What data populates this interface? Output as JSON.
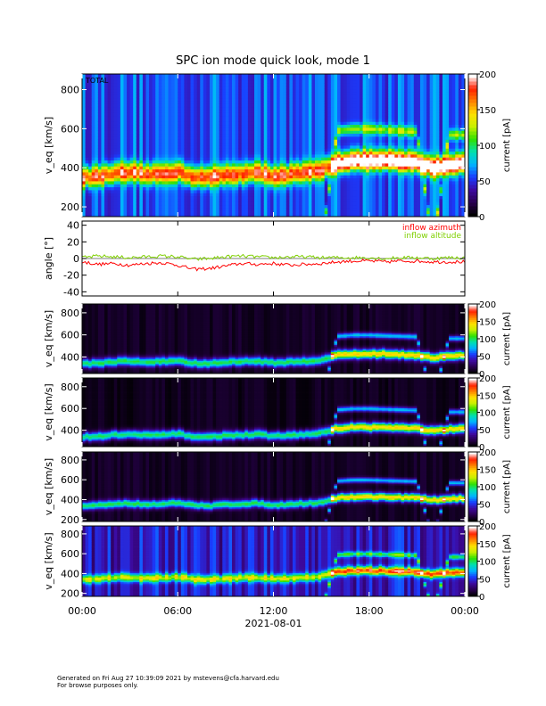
{
  "title": "SPC ion mode quick look, mode 1",
  "footer": {
    "line1": "Generated on Fri Aug 27 10:39:09 2021 by mstevens@cfa.harvard.edu",
    "line2": "For browse purposes only."
  },
  "colors": {
    "azimuth": "#ff0000",
    "altitude": "#7fd000",
    "colormap": [
      "#000000",
      "#2a0050",
      "#3d0aa0",
      "#1a3cff",
      "#00b4ff",
      "#00e0b0",
      "#30e000",
      "#c8f000",
      "#ffe000",
      "#ff8000",
      "#ff2000",
      "#ffffff"
    ]
  },
  "chart_data": [
    {
      "type": "heatmap",
      "panel_label": "TOTAL",
      "ylabel": "v_eq [km/s]",
      "yticks": [
        200,
        400,
        600,
        800
      ],
      "ylim": [
        150,
        880
      ],
      "colorbar": {
        "label": "current [pA]",
        "ticks": [
          0,
          50,
          100,
          150,
          200
        ],
        "range": [
          0,
          200
        ]
      },
      "xlim": [
        "00:00",
        "24:00"
      ]
    },
    {
      "type": "line",
      "ylabel": "angle [°]",
      "yticks": [
        -40,
        -20,
        0,
        20,
        40
      ],
      "ylim": [
        -45,
        45
      ],
      "grid": false,
      "legend_position": "top-right",
      "series": [
        {
          "name": "inflow azimuth",
          "color": "#ff0000",
          "x_hours": [
            0,
            1,
            2,
            3,
            4,
            5,
            6,
            7,
            8,
            9,
            10,
            11,
            12,
            13,
            14,
            15,
            16,
            17,
            18,
            19,
            20,
            21,
            22,
            23,
            24
          ],
          "values": [
            -4,
            -7,
            -6,
            -8,
            -6,
            -5,
            -8,
            -13,
            -12,
            -9,
            -6,
            -7,
            -6,
            -8,
            -7,
            -6,
            -4,
            -3,
            -3,
            -4,
            -3,
            -3,
            -4,
            -4,
            -4
          ]
        },
        {
          "name": "inflow altitude",
          "color": "#7fd000",
          "x_hours": [
            0,
            1,
            2,
            3,
            4,
            5,
            6,
            7,
            8,
            9,
            10,
            11,
            12,
            13,
            14,
            15,
            16,
            17,
            18,
            19,
            20,
            21,
            22,
            23,
            24
          ],
          "values": [
            1,
            3,
            2,
            1,
            2,
            3,
            2,
            -1,
            0,
            2,
            3,
            2,
            1,
            2,
            2,
            1,
            1,
            1,
            1,
            0,
            1,
            1,
            0,
            1,
            1
          ]
        }
      ]
    },
    {
      "type": "heatmap",
      "ylabel": "v_eq [km/s]",
      "yticks": [
        400,
        600,
        800
      ],
      "ylim": [
        250,
        880
      ],
      "colorbar": {
        "label": "current [pA]",
        "ticks": [
          0,
          50,
          100,
          150,
          200
        ],
        "range": [
          0,
          200
        ]
      }
    },
    {
      "type": "heatmap",
      "ylabel": "v_eq [km/s]",
      "yticks": [
        400,
        600,
        800
      ],
      "ylim": [
        250,
        880
      ],
      "colorbar": {
        "label": "current [pA]",
        "ticks": [
          0,
          50,
          100,
          150,
          200
        ],
        "range": [
          0,
          200
        ]
      }
    },
    {
      "type": "heatmap",
      "ylabel": "v_eq [km/s]",
      "yticks": [
        200,
        400,
        600,
        800
      ],
      "ylim": [
        180,
        880
      ],
      "colorbar": {
        "label": "current [pA]",
        "ticks": [
          0,
          50,
          100,
          150,
          200
        ],
        "range": [
          0,
          200
        ]
      }
    },
    {
      "type": "heatmap",
      "ylabel": "v_eq [km/s]",
      "yticks": [
        200,
        400,
        600,
        800
      ],
      "ylim": [
        170,
        880
      ],
      "colorbar": {
        "label": "current [pA]",
        "ticks": [
          0,
          50,
          100,
          150,
          200
        ],
        "range": [
          0,
          200
        ]
      },
      "xticks": [
        "00:00",
        "06:00",
        "12:00",
        "18:00",
        "00:00"
      ],
      "xlabel": "2021-08-01"
    }
  ],
  "solar_wind": {
    "x_hours": [
      0,
      1,
      2,
      3,
      4,
      5,
      6,
      7,
      8,
      9,
      10,
      11,
      12,
      13,
      14,
      15,
      16,
      17,
      18,
      19,
      20,
      21,
      22,
      23,
      24
    ],
    "core_speed_kms": [
      340,
      345,
      360,
      365,
      355,
      360,
      370,
      345,
      340,
      355,
      360,
      365,
      350,
      355,
      365,
      375,
      420,
      430,
      430,
      430,
      425,
      420,
      395,
      410,
      415
    ],
    "alpha_speed_kms": [
      0,
      0,
      0,
      0,
      0,
      0,
      0,
      0,
      0,
      0,
      0,
      0,
      0,
      0,
      0,
      0,
      590,
      600,
      600,
      595,
      590,
      585,
      0,
      570,
      570
    ]
  }
}
